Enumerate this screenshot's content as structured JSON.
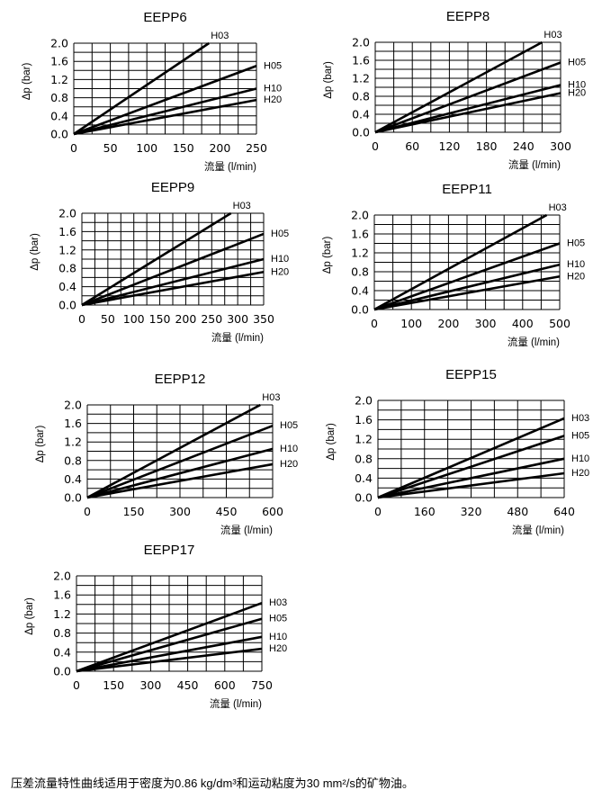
{
  "footnote": "压差流量特性曲线适用于密度为0.86 kg/dm³和运动粘度为30 mm²/s的矿物油。",
  "chart_data": [
    {
      "type": "line",
      "title": "EEPP6",
      "xlabel": "流量 (l/min)",
      "ylabel": "Δp (bar)",
      "xlim": [
        0,
        250
      ],
      "ylim": [
        0,
        2.0
      ],
      "xticks": [
        "0",
        "50",
        "100",
        "150",
        "200",
        "250"
      ],
      "yticks": [
        "0.0",
        "0.4",
        "0.8",
        "1.2",
        "1.6",
        "2.0"
      ],
      "grid": true,
      "series": [
        {
          "name": "H03",
          "x": [
            0,
            185
          ],
          "y": [
            0,
            2.0
          ]
        },
        {
          "name": "H05",
          "x": [
            0,
            250
          ],
          "y": [
            0,
            1.5
          ]
        },
        {
          "name": "H10",
          "x": [
            0,
            250
          ],
          "y": [
            0,
            1.0
          ]
        },
        {
          "name": "H20",
          "x": [
            0,
            250
          ],
          "y": [
            0,
            0.75
          ]
        }
      ]
    },
    {
      "type": "line",
      "title": "EEPP8",
      "xlabel": "流量 (l/min)",
      "ylabel": "Δp (bar)",
      "xlim": [
        0,
        300
      ],
      "ylim": [
        0,
        2.0
      ],
      "xticks": [
        "0",
        "60",
        "120",
        "180",
        "240",
        "300"
      ],
      "yticks": [
        "0.0",
        "0.4",
        "0.8",
        "1.2",
        "1.6",
        "2.0"
      ],
      "grid": true,
      "series": [
        {
          "name": "H03",
          "x": [
            0,
            270
          ],
          "y": [
            0,
            2.0
          ]
        },
        {
          "name": "H05",
          "x": [
            0,
            300
          ],
          "y": [
            0,
            1.55
          ]
        },
        {
          "name": "H10",
          "x": [
            0,
            300
          ],
          "y": [
            0,
            1.05
          ]
        },
        {
          "name": "H20",
          "x": [
            0,
            300
          ],
          "y": [
            0,
            0.87
          ]
        }
      ]
    },
    {
      "type": "line",
      "title": "EEPP9",
      "xlabel": "流量 (l/min)",
      "ylabel": "Δp (bar)",
      "xlim": [
        0,
        350
      ],
      "ylim": [
        0,
        2.0
      ],
      "xticks": [
        "0",
        "50",
        "100",
        "150",
        "200",
        "250",
        "300",
        "350"
      ],
      "yticks": [
        "0.0",
        "0.4",
        "0.8",
        "1.2",
        "1.6",
        "2.0"
      ],
      "grid": true,
      "series": [
        {
          "name": "H03",
          "x": [
            0,
            287
          ],
          "y": [
            0,
            2.0
          ]
        },
        {
          "name": "H05",
          "x": [
            0,
            350
          ],
          "y": [
            0,
            1.55
          ]
        },
        {
          "name": "H10",
          "x": [
            0,
            350
          ],
          "y": [
            0,
            1.0
          ]
        },
        {
          "name": "H20",
          "x": [
            0,
            350
          ],
          "y": [
            0,
            0.72
          ]
        }
      ]
    },
    {
      "type": "line",
      "title": "EEPP11",
      "xlabel": "流量 (l/min)",
      "ylabel": "Δp (bar)",
      "xlim": [
        0,
        500
      ],
      "ylim": [
        0,
        2.0
      ],
      "xticks": [
        "0",
        "100",
        "200",
        "300",
        "400",
        "500"
      ],
      "yticks": [
        "0.0",
        "0.4",
        "0.8",
        "1.2",
        "1.6",
        "2.0"
      ],
      "grid": true,
      "series": [
        {
          "name": "H03",
          "x": [
            0,
            465
          ],
          "y": [
            0,
            2.0
          ]
        },
        {
          "name": "H05",
          "x": [
            0,
            500
          ],
          "y": [
            0,
            1.4
          ]
        },
        {
          "name": "H10",
          "x": [
            0,
            500
          ],
          "y": [
            0,
            0.95
          ]
        },
        {
          "name": "H20",
          "x": [
            0,
            500
          ],
          "y": [
            0,
            0.7
          ]
        }
      ]
    },
    {
      "type": "line",
      "title": "EEPP12",
      "xlabel": "流量 (l/min)",
      "ylabel": "Δp (bar)",
      "xlim": [
        0,
        600
      ],
      "ylim": [
        0,
        2.0
      ],
      "xticks": [
        "0",
        "150",
        "300",
        "450",
        "600"
      ],
      "yticks": [
        "0.0",
        "0.4",
        "0.8",
        "1.2",
        "1.6",
        "2.0"
      ],
      "grid": true,
      "series": [
        {
          "name": "H03",
          "x": [
            0,
            560
          ],
          "y": [
            0,
            2.0
          ]
        },
        {
          "name": "H05",
          "x": [
            0,
            600
          ],
          "y": [
            0,
            1.55
          ]
        },
        {
          "name": "H10",
          "x": [
            0,
            600
          ],
          "y": [
            0,
            1.05
          ]
        },
        {
          "name": "H20",
          "x": [
            0,
            600
          ],
          "y": [
            0,
            0.72
          ]
        }
      ]
    },
    {
      "type": "line",
      "title": "EEPP15",
      "xlabel": "流量 (l/min)",
      "ylabel": "Δp (bar)",
      "xlim": [
        0,
        640
      ],
      "ylim": [
        0,
        2.0
      ],
      "xticks": [
        "0",
        "160",
        "320",
        "480",
        "640"
      ],
      "yticks": [
        "0.0",
        "0.4",
        "0.8",
        "1.2",
        "1.6",
        "2.0"
      ],
      "grid": true,
      "series": [
        {
          "name": "H03",
          "x": [
            0,
            640
          ],
          "y": [
            0,
            1.63
          ]
        },
        {
          "name": "H05",
          "x": [
            0,
            640
          ],
          "y": [
            0,
            1.27
          ]
        },
        {
          "name": "H10",
          "x": [
            0,
            640
          ],
          "y": [
            0,
            0.8
          ]
        },
        {
          "name": "H20",
          "x": [
            0,
            640
          ],
          "y": [
            0,
            0.5
          ]
        }
      ]
    },
    {
      "type": "line",
      "title": "EEPP17",
      "xlabel": "流量 (l/min)",
      "ylabel": "Δp (bar)",
      "xlim": [
        0,
        750
      ],
      "ylim": [
        0,
        2.0
      ],
      "xticks": [
        "0",
        "150",
        "300",
        "450",
        "600",
        "750"
      ],
      "yticks": [
        "0.0",
        "0.4",
        "0.8",
        "1.2",
        "1.6",
        "2.0"
      ],
      "grid": true,
      "series": [
        {
          "name": "H03",
          "x": [
            0,
            750
          ],
          "y": [
            0,
            1.43
          ]
        },
        {
          "name": "H05",
          "x": [
            0,
            750
          ],
          "y": [
            0,
            1.1
          ]
        },
        {
          "name": "H10",
          "x": [
            0,
            750
          ],
          "y": [
            0,
            0.72
          ]
        },
        {
          "name": "H20",
          "x": [
            0,
            750
          ],
          "y": [
            0,
            0.47
          ]
        }
      ]
    }
  ]
}
